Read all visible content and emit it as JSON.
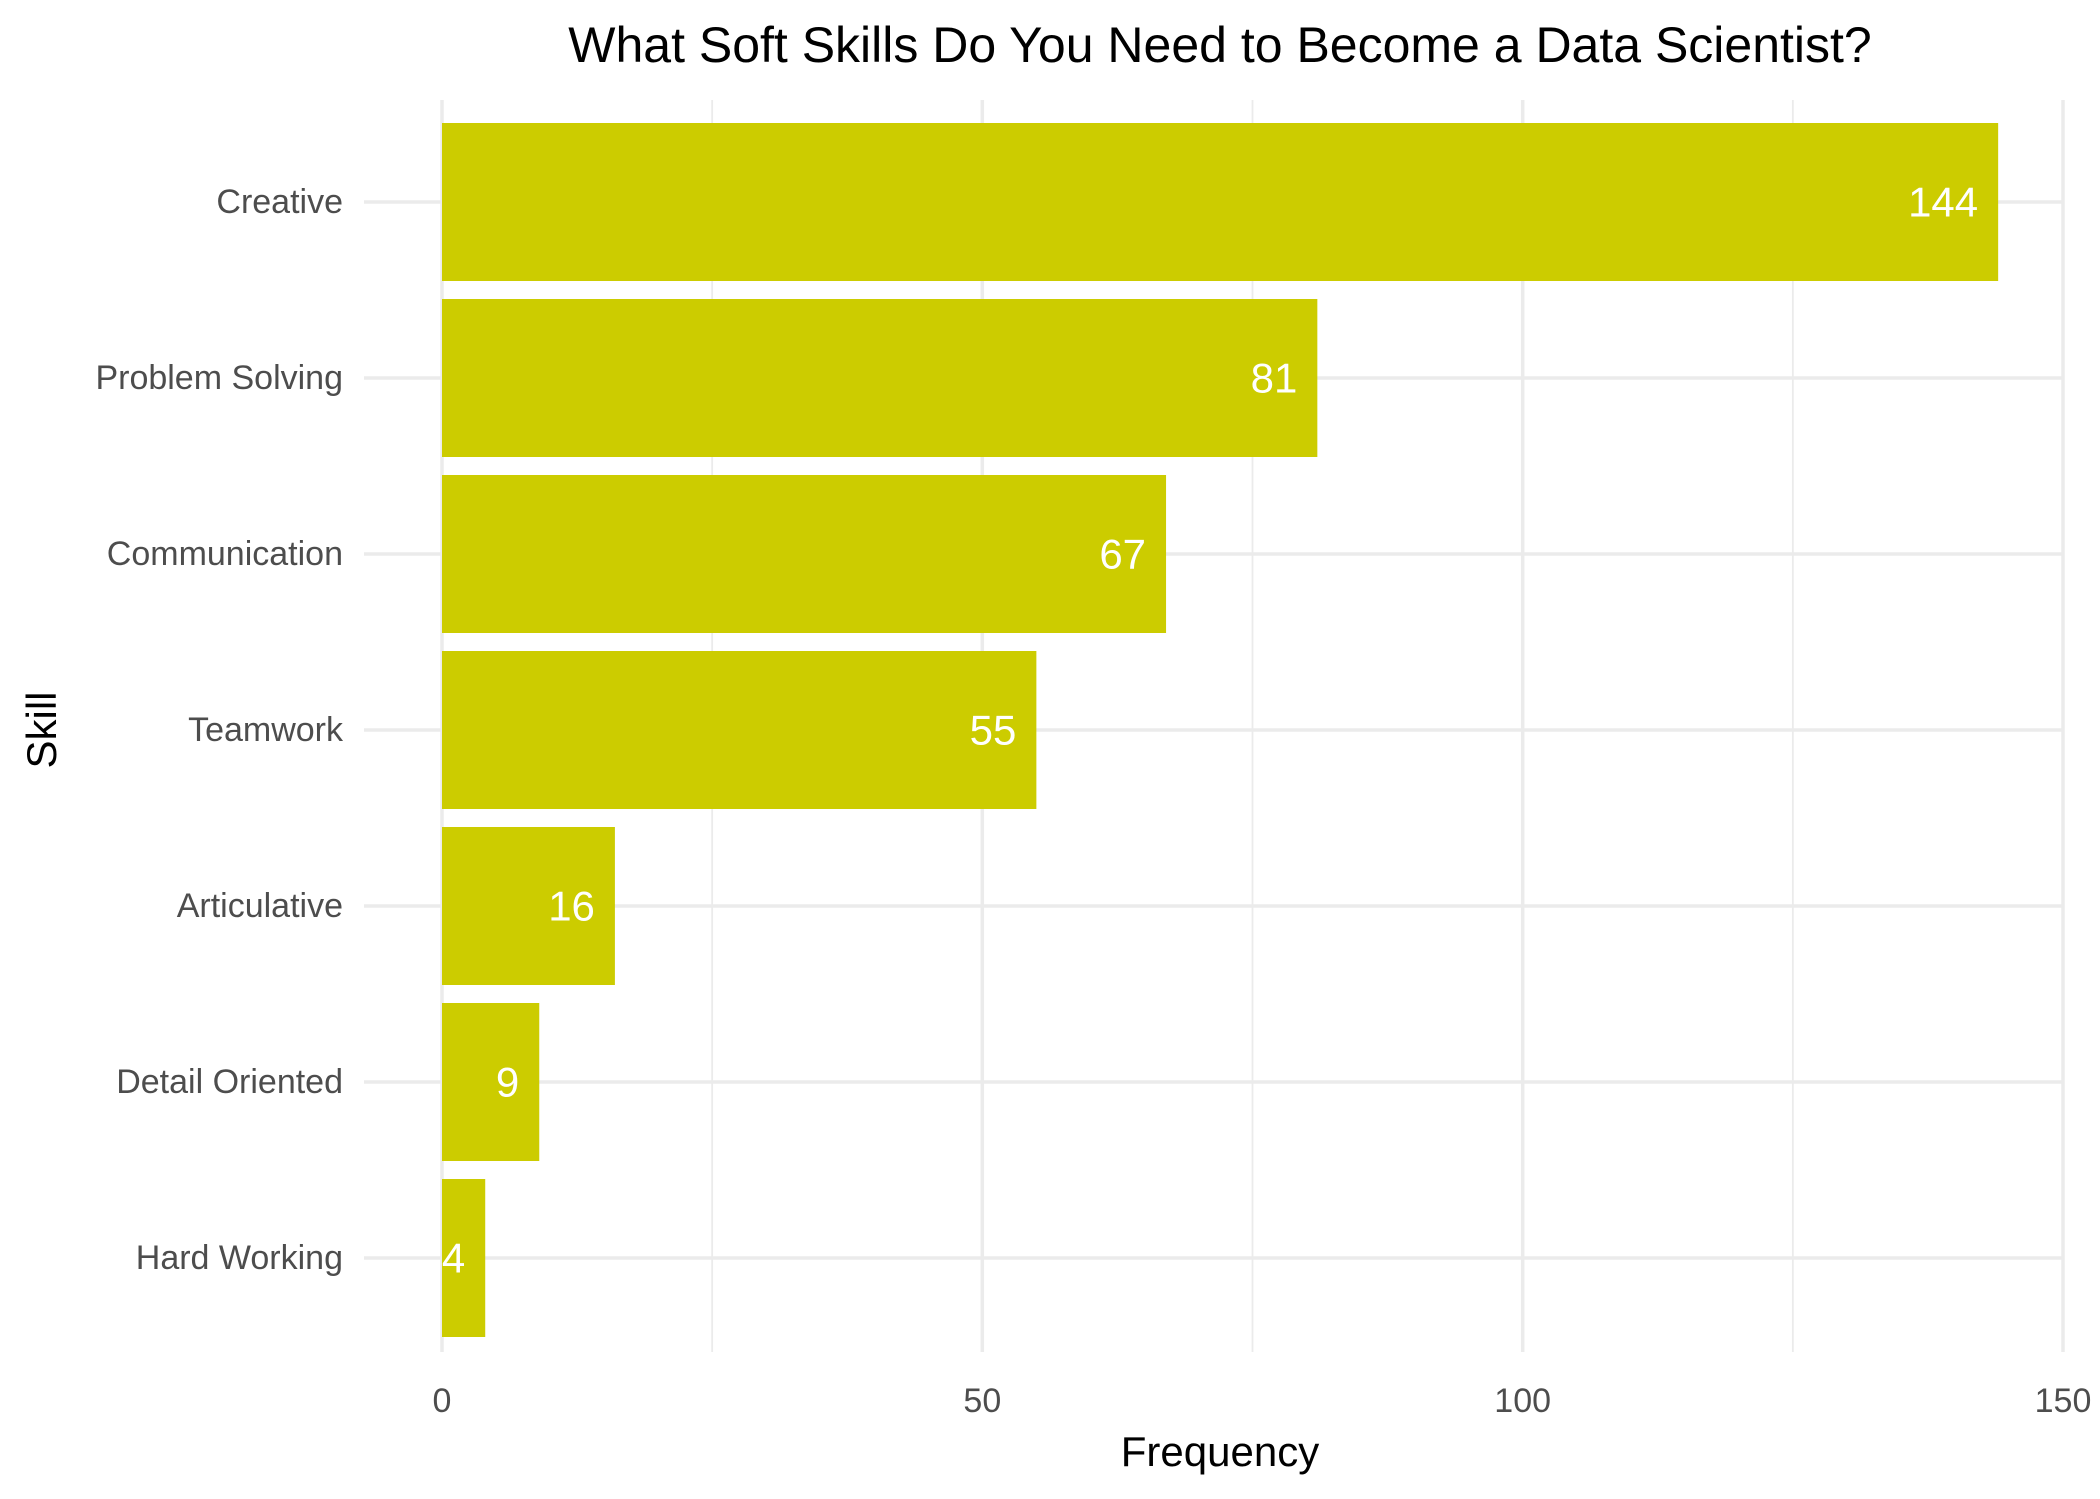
{
  "chart_data": {
    "type": "bar",
    "orientation": "horizontal",
    "title": "What Soft Skills Do You Need to Become a Data Scientist?",
    "xlabel": "Frequency",
    "ylabel": "Skill",
    "categories": [
      "Creative",
      "Problem Solving",
      "Communication",
      "Teamwork",
      "Articulative",
      "Detail Oriented",
      "Hard Working"
    ],
    "values": [
      144,
      81,
      67,
      55,
      16,
      9,
      4
    ],
    "data_labels": [
      "144",
      "81",
      "67",
      "55",
      "16",
      "9",
      "4"
    ],
    "xlim": [
      0,
      150
    ],
    "x_ticks": [
      0,
      50,
      100,
      150
    ],
    "x_tick_labels": [
      "0",
      "50",
      "100",
      "150"
    ],
    "x_minor_ticks": [
      25,
      75,
      125
    ],
    "grid": true,
    "legend": "none",
    "bar_color": "#CCCC00",
    "label_color": "#FFFFFF"
  }
}
